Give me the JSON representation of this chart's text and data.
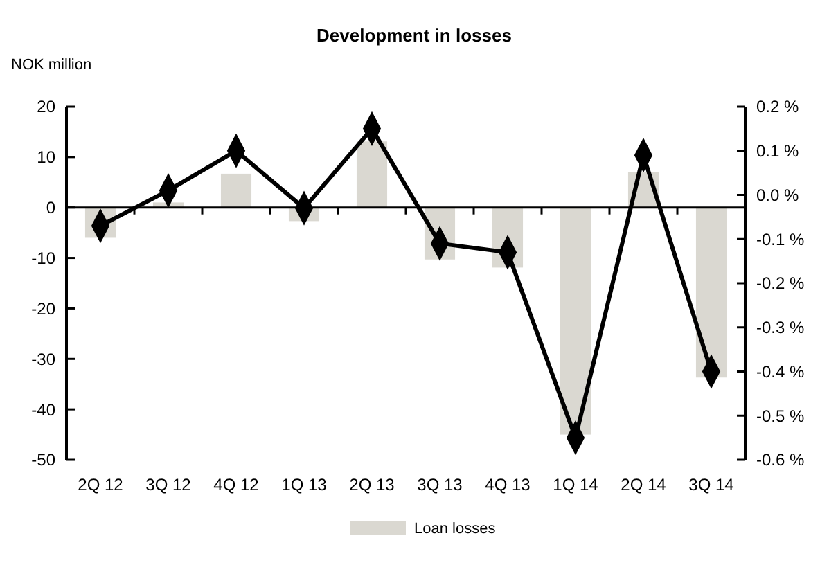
{
  "chart_data": {
    "type": "bar",
    "title": "Development in losses",
    "ylabel": "NOK million",
    "categories": [
      "2Q 12",
      "3Q 12",
      "4Q 12",
      "1Q 13",
      "2Q 13",
      "3Q 13",
      "4Q 13",
      "1Q 14",
      "2Q 14",
      "3Q 14"
    ],
    "series": [
      {
        "name": "Loan losses",
        "color": "#dad8d1",
        "values": [
          -6,
          1,
          6.7,
          -2.7,
          13.1,
          -10.3,
          -11.9,
          -45,
          7.1,
          -33.7
        ]
      },
      {
        "type": "line",
        "axis": "y2",
        "color": "#000000",
        "marker": "diamond",
        "line_style": "solid",
        "values": [
          -0.07,
          0.01,
          0.1,
          -0.03,
          0.15,
          -0.11,
          -0.13,
          -0.55,
          0.09,
          -0.4
        ]
      }
    ],
    "ylim": [
      -50,
      20
    ],
    "yticks": [
      -50,
      -40,
      -30,
      -20,
      -10,
      0,
      10,
      20
    ],
    "y2lim": [
      -0.6,
      0.2
    ],
    "y2ticks": [
      {
        "value": -0.6,
        "label": "-0.6 %"
      },
      {
        "value": -0.5,
        "label": "-0.5 %"
      },
      {
        "value": -0.4,
        "label": "-0.4 %"
      },
      {
        "value": -0.3,
        "label": "-0.3 %"
      },
      {
        "value": -0.2,
        "label": "-0.2 %"
      },
      {
        "value": -0.1,
        "label": "-0.1 %"
      },
      {
        "value": 0,
        "label": "0.0 %"
      },
      {
        "value": 0.1,
        "label": "0.1 %"
      },
      {
        "value": 0.2,
        "label": "0.2 %"
      }
    ],
    "legend": "bottom"
  }
}
